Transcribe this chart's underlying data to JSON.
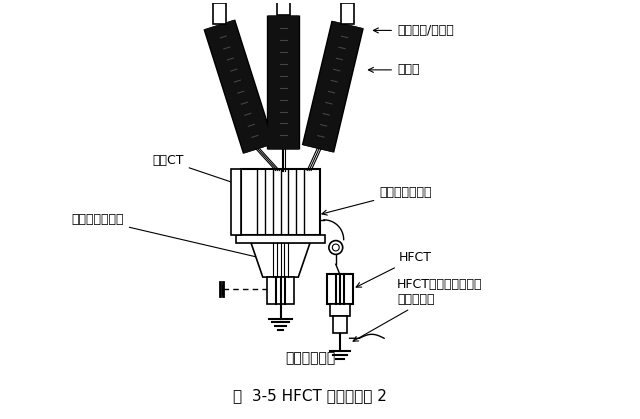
{
  "title": "图  3-5 HFCT 测量原理图 2",
  "subtitle": "电缆接地母线",
  "labels": {
    "cable_inlet": "电缆进线/馈缆端",
    "cable_head": "电缆头",
    "zero_ct": "零序CT",
    "conductor": "导线、绝缘层等",
    "shield_ground": "电缆屏蔽接地线",
    "hfct": "HFCT",
    "coax_line1": "HFCT同轴电缆，连接",
    "coax_line2": "到监测装置"
  },
  "bg_color": "#ffffff",
  "line_color": "#000000"
}
